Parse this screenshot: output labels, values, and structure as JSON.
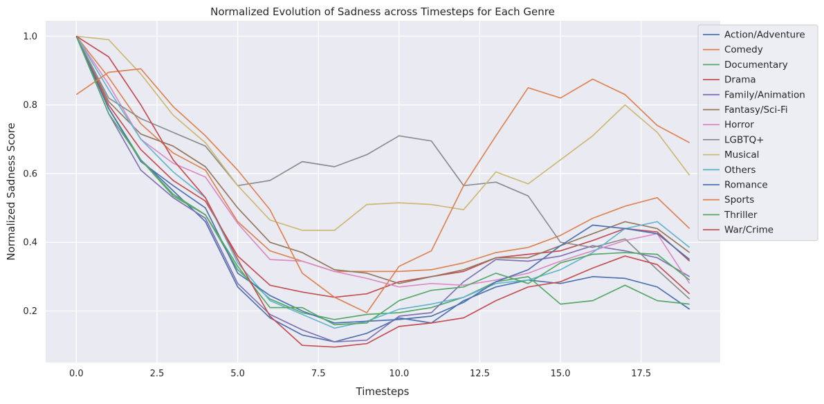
{
  "chart_data": {
    "type": "line",
    "title": "Normalized Evolution of Sadness across Timesteps for Each Genre",
    "xlabel": "Timesteps",
    "ylabel": "Normalized Sadness Score",
    "xlim": [
      -0.95,
      19.95
    ],
    "ylim": [
      0.05,
      1.045
    ],
    "xticks": [
      0.0,
      2.5,
      5.0,
      7.5,
      10.0,
      12.5,
      15.0,
      17.5
    ],
    "xtick_labels": [
      "0.0",
      "2.5",
      "5.0",
      "7.5",
      "10.0",
      "12.5",
      "15.0",
      "17.5"
    ],
    "yticks": [
      0.2,
      0.4,
      0.6,
      0.8,
      1.0
    ],
    "ytick_labels": [
      "0.2",
      "0.4",
      "0.6",
      "0.8",
      "1.0"
    ],
    "grid": true,
    "legend_position": "upper-right, outside",
    "x": [
      0,
      1,
      2,
      3,
      4,
      5,
      6,
      7,
      8,
      9,
      10,
      11,
      12,
      13,
      14,
      15,
      16,
      17,
      18,
      19
    ],
    "series": [
      {
        "name": "Action/Adventure",
        "color": "#4c72b0",
        "values": [
          1.0,
          0.79,
          0.64,
          0.55,
          0.46,
          0.27,
          0.18,
          0.13,
          0.11,
          0.135,
          0.18,
          0.165,
          0.23,
          0.27,
          0.29,
          0.28,
          0.3,
          0.295,
          0.27,
          0.205
        ]
      },
      {
        "name": "Comedy",
        "color": "#dd8452",
        "values": [
          1.0,
          0.88,
          0.745,
          0.66,
          0.61,
          0.46,
          0.375,
          0.345,
          0.315,
          0.315,
          0.315,
          0.32,
          0.34,
          0.37,
          0.385,
          0.42,
          0.47,
          0.505,
          0.53,
          0.44
        ]
      },
      {
        "name": "Documentary",
        "color": "#55a868",
        "values": [
          1.0,
          0.79,
          0.64,
          0.535,
          0.48,
          0.32,
          0.235,
          0.195,
          0.175,
          0.19,
          0.195,
          0.21,
          0.24,
          0.285,
          0.3,
          0.22,
          0.23,
          0.275,
          0.23,
          0.22
        ]
      },
      {
        "name": "Drama",
        "color": "#c44e52",
        "values": [
          1.0,
          0.8,
          0.67,
          0.58,
          0.52,
          0.36,
          0.275,
          0.255,
          0.24,
          0.25,
          0.285,
          0.3,
          0.315,
          0.355,
          0.365,
          0.375,
          0.405,
          0.44,
          0.43,
          0.345
        ]
      },
      {
        "name": "Family/Animation",
        "color": "#8172b3",
        "values": [
          1.0,
          0.775,
          0.61,
          0.53,
          0.47,
          0.28,
          0.19,
          0.145,
          0.11,
          0.115,
          0.185,
          0.195,
          0.285,
          0.35,
          0.345,
          0.36,
          0.39,
          0.375,
          0.355,
          0.3
        ]
      },
      {
        "name": "Fantasy/Sci-Fi",
        "color": "#937860",
        "values": [
          1.0,
          0.81,
          0.715,
          0.68,
          0.62,
          0.5,
          0.4,
          0.37,
          0.32,
          0.31,
          0.28,
          0.3,
          0.32,
          0.355,
          0.355,
          0.39,
          0.425,
          0.46,
          0.44,
          0.37
        ]
      },
      {
        "name": "Horror",
        "color": "#da8bc3",
        "values": [
          1.0,
          0.86,
          0.7,
          0.63,
          0.59,
          0.455,
          0.35,
          0.345,
          0.315,
          0.295,
          0.27,
          0.28,
          0.275,
          0.29,
          0.31,
          0.345,
          0.375,
          0.405,
          0.425,
          0.28
        ]
      },
      {
        "name": "LGBTQ+",
        "color": "#8c8c8c",
        "values": [
          1.0,
          0.82,
          0.76,
          0.72,
          0.68,
          0.565,
          0.58,
          0.635,
          0.62,
          0.655,
          0.71,
          0.695,
          0.565,
          0.575,
          0.535,
          0.4,
          0.385,
          0.41,
          0.32,
          0.235
        ]
      },
      {
        "name": "Musical",
        "color": "#ccb974",
        "values": [
          1.0,
          0.99,
          0.89,
          0.77,
          0.69,
          0.565,
          0.465,
          0.435,
          0.435,
          0.51,
          0.515,
          0.51,
          0.495,
          0.605,
          0.57,
          0.64,
          0.71,
          0.8,
          0.72,
          0.595
        ]
      },
      {
        "name": "Others",
        "color": "#64b5cd",
        "values": [
          1.0,
          0.845,
          0.7,
          0.605,
          0.53,
          0.34,
          0.23,
          0.19,
          0.15,
          0.17,
          0.205,
          0.22,
          0.24,
          0.28,
          0.29,
          0.32,
          0.37,
          0.44,
          0.46,
          0.385
        ]
      },
      {
        "name": "Romance",
        "color": "#4c72b0",
        "values": [
          1.0,
          0.79,
          0.635,
          0.565,
          0.5,
          0.31,
          0.245,
          0.2,
          0.165,
          0.17,
          0.175,
          0.185,
          0.225,
          0.285,
          0.32,
          0.39,
          0.45,
          0.44,
          0.425,
          0.35
        ]
      },
      {
        "name": "Sports",
        "color": "#dd8452",
        "values": [
          0.83,
          0.895,
          0.905,
          0.795,
          0.71,
          0.61,
          0.495,
          0.31,
          0.24,
          0.195,
          0.33,
          0.375,
          0.565,
          0.71,
          0.85,
          0.82,
          0.875,
          0.83,
          0.74,
          0.69
        ]
      },
      {
        "name": "Thriller",
        "color": "#55a868",
        "values": [
          1.0,
          0.775,
          0.64,
          0.54,
          0.48,
          0.33,
          0.21,
          0.21,
          0.16,
          0.165,
          0.23,
          0.26,
          0.27,
          0.31,
          0.28,
          0.34,
          0.365,
          0.37,
          0.365,
          0.29
        ]
      },
      {
        "name": "War/Crime",
        "color": "#c44e52",
        "values": [
          1.0,
          0.94,
          0.8,
          0.64,
          0.53,
          0.35,
          0.185,
          0.1,
          0.095,
          0.105,
          0.155,
          0.165,
          0.18,
          0.23,
          0.27,
          0.285,
          0.325,
          0.36,
          0.335,
          0.25
        ]
      }
    ]
  }
}
